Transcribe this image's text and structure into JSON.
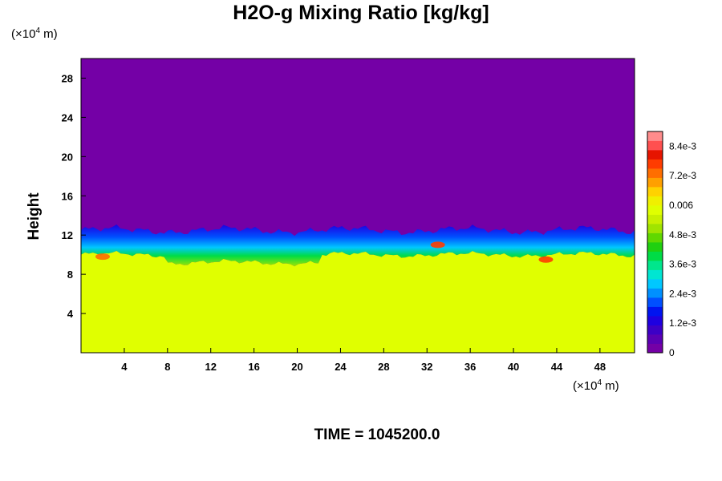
{
  "chart_data": {
    "type": "heatmap",
    "title": "H2O-g Mixing Ratio [kg/kg]",
    "ylabel": "Height",
    "y_unit": {
      "prefix": "(×10",
      "exp": "4",
      "suffix": " m)"
    },
    "x_unit": {
      "prefix": "(×10",
      "exp": "4",
      "suffix": " m)"
    },
    "xlim": [
      0,
      51.2
    ],
    "ylim": [
      0,
      30
    ],
    "x_ticks": [
      4,
      8,
      12,
      16,
      20,
      24,
      28,
      32,
      36,
      40,
      44,
      48
    ],
    "y_ticks": [
      4,
      8,
      12,
      16,
      20,
      24,
      28
    ],
    "colorbar": {
      "min": 0,
      "max": 0.009,
      "labels": [
        "0",
        "1.2e-3",
        "2.4e-3",
        "3.6e-3",
        "4.8e-3",
        "0.006",
        "7.2e-3",
        "8.4e-3"
      ],
      "label_values": [
        0,
        0.0012,
        0.0024,
        0.0036,
        0.0048,
        0.006,
        0.0072,
        0.0084
      ],
      "colors": [
        "#7400a6",
        "#5a00b4",
        "#3c00c6",
        "#1e00e0",
        "#0014f0",
        "#0050ff",
        "#0090ff",
        "#00c8ff",
        "#00e6d2",
        "#00e68c",
        "#00dc46",
        "#20d010",
        "#60d800",
        "#a0e400",
        "#c8f000",
        "#e0ff00",
        "#f0f000",
        "#ffd200",
        "#ffa000",
        "#ff6e00",
        "#ff3c00",
        "#e61400",
        "#ff5050",
        "#ff8c8c"
      ]
    },
    "field": {
      "upper_value": 0,
      "lower_value": 0.0064,
      "interface_height_range": [
        10,
        12.5
      ],
      "local_maxima_near_interface": [
        {
          "x": 33,
          "y": 11,
          "value": 0.0078
        },
        {
          "x": 43,
          "y": 9.5,
          "value": 0.0075
        },
        {
          "x": 2,
          "y": 9.8,
          "value": 0.0072
        }
      ]
    }
  },
  "time_label": "TIME = 1045200.0",
  "colors": {
    "upper": "#7400a6",
    "lower": "#e0ff00",
    "frame": "#000000"
  }
}
